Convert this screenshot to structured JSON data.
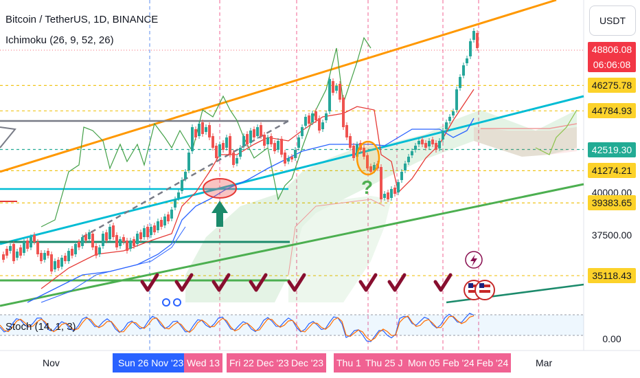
{
  "header": {
    "symbol_line": "Bitcoin / TetherUS, 1D, BINANCE",
    "indicator_line": "Ichimoku (26, 9, 52, 26)",
    "currency_button": "USDT"
  },
  "stoch": {
    "label": "Stoch (14, 1, 3)"
  },
  "price_axis": {
    "ticks": [
      {
        "value": "40000.00",
        "price": 40000
      },
      {
        "value": "37500.00",
        "price": 37500
      },
      {
        "value": "0.00",
        "price": null
      }
    ],
    "highlighted": [
      {
        "text": "48806.08",
        "sub": "06:06:08",
        "price": 48806.08,
        "bg": "#f23645",
        "fg": "#ffffff"
      },
      {
        "text": "46275.78",
        "price": 46275.78,
        "bg": "#fcd22a",
        "fg": "#131722"
      },
      {
        "text": "44784.93",
        "price": 44784.93,
        "bg": "#fcd22a",
        "fg": "#131722"
      },
      {
        "text": "42519.30",
        "price": 42519.3,
        "bg": "#22ab94",
        "fg": "#ffffff"
      },
      {
        "text": "41274.21",
        "price": 41274.21,
        "bg": "#fcd22a",
        "fg": "#131722"
      },
      {
        "text": "39383.65",
        "price": 39383.65,
        "bg": "#fcd22a",
        "fg": "#131722"
      },
      {
        "text": "35118.43",
        "price": 35118.43,
        "bg": "#fcd22a",
        "fg": "#131722"
      }
    ]
  },
  "time_axis": {
    "labels": [
      {
        "text": "Nov",
        "style": "plain"
      },
      {
        "text": "Sun 26 Nov '23",
        "style": "blue"
      },
      {
        "text": "Wed 13",
        "style": "pink"
      },
      {
        "text": "Fri 22 Dec '23",
        "style": "pink"
      },
      {
        "text": "Dec '23",
        "style": "pink"
      },
      {
        "text": "Thu 1",
        "style": "pink"
      },
      {
        "text": "Thu 25 J",
        "style": "pink"
      },
      {
        "text": "Mon 05 Feb '24",
        "style": "pink"
      },
      {
        "text": "Feb '24",
        "style": "pink"
      },
      {
        "text": "Mar",
        "style": "plain"
      }
    ]
  },
  "annotations": {
    "question_mark": "?",
    "flash_icon": "lightning-icon",
    "flag_icon": "us-flag-icon",
    "check_icon": "checkmark-icon",
    "arrow_icon": "up-arrow-icon"
  },
  "chart_data": {
    "type": "candlestick",
    "symbol": "Bitcoin / TetherUS",
    "interval": "1D",
    "exchange": "BINANCE",
    "last_price": 48806.08,
    "countdown": "06:06:08",
    "horizontal_levels": [
      46275.78,
      44784.93,
      42519.3,
      41274.21,
      39383.65,
      35118.43
    ],
    "stoch_params": [
      14,
      1,
      3
    ],
    "ichimoku_params": [
      26,
      9,
      52,
      26
    ]
  },
  "colors": {
    "bull": "#26a69a",
    "bear": "#ef5350",
    "orange": "#ff9800",
    "cyan": "#00bcd4",
    "green": "#4caf50",
    "check": "#880e2f",
    "dashed_v": "#f06292",
    "dashed_blue": "#5b8def"
  }
}
